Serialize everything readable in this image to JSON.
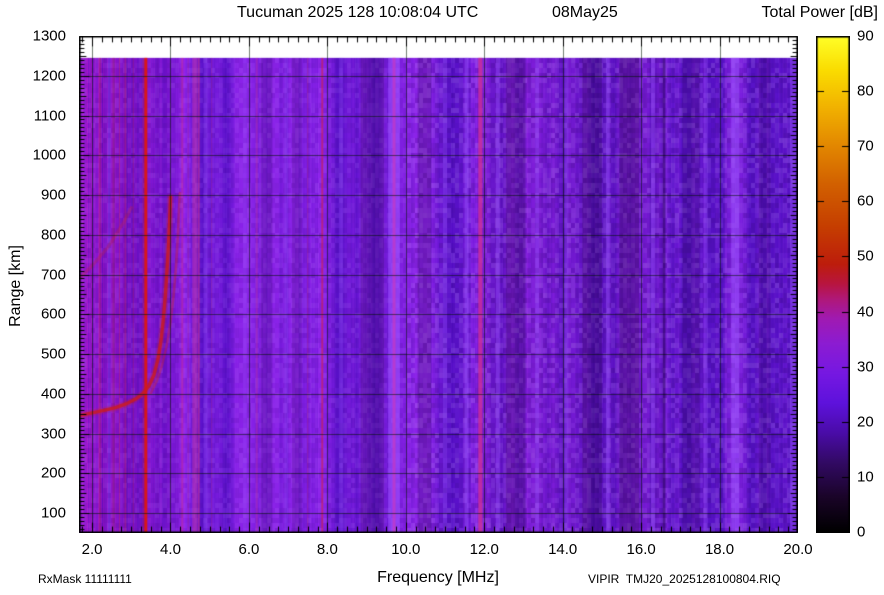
{
  "header": {
    "title_main": "Tucuman 2025 128 10:08:04 UTC",
    "title_date": "08May25",
    "colorbar_title": "Total Power [dB]"
  },
  "footer": {
    "rx_mask": "RxMask 11111111",
    "file_name": "VIPIR  TMJ20_2025128100804.RIQ",
    "x_axis_label": "Frequency [MHz]"
  },
  "y_axis_label": "Range [km]",
  "axes": {
    "x": {
      "label": "Frequency [MHz]",
      "min": 1.667,
      "max": 20.0,
      "tick_values": [
        2,
        4,
        6,
        8,
        10,
        12,
        14,
        16,
        18,
        20
      ],
      "tick_labels": [
        "2.0",
        "4.0",
        "6.0",
        "8.0",
        "10.0",
        "12.0",
        "14.0",
        "16.0",
        "18.0",
        "20.0"
      ],
      "minor_step": 0.25
    },
    "y": {
      "label": "Range [km]",
      "min": 50,
      "max": 1300,
      "tick_values": [
        100,
        200,
        300,
        400,
        500,
        600,
        700,
        800,
        900,
        1000,
        1100,
        1200,
        1300
      ],
      "tick_labels": [
        "100",
        "200",
        "300",
        "400",
        "500",
        "600",
        "700",
        "800",
        "900",
        "1000",
        "1100",
        "1200",
        "1300"
      ],
      "minor_step": 10
    },
    "colorbar": {
      "title": "Total Power [dB]",
      "min": 0,
      "max": 90,
      "tick_values": [
        0,
        10,
        20,
        30,
        40,
        50,
        60,
        70,
        80,
        90
      ],
      "tick_labels": [
        "0",
        "10",
        "20",
        "30",
        "40",
        "50",
        "60",
        "70",
        "80",
        "90"
      ],
      "gradient_stops": [
        {
          "t": 0.0,
          "color": "#000000"
        },
        {
          "t": 0.07,
          "color": "#1a0428"
        },
        {
          "t": 0.14,
          "color": "#320a64"
        },
        {
          "t": 0.2,
          "color": "#4a0ca8"
        },
        {
          "t": 0.26,
          "color": "#5e12dc"
        },
        {
          "t": 0.32,
          "color": "#7618e2"
        },
        {
          "t": 0.38,
          "color": "#8c1cd2"
        },
        {
          "t": 0.43,
          "color": "#a01ab2"
        },
        {
          "t": 0.47,
          "color": "#b01878"
        },
        {
          "t": 0.5,
          "color": "#b81540"
        },
        {
          "t": 0.54,
          "color": "#bd1d0c"
        },
        {
          "t": 0.62,
          "color": "#c64000"
        },
        {
          "t": 0.7,
          "color": "#d26000"
        },
        {
          "t": 0.78,
          "color": "#e38800"
        },
        {
          "t": 0.86,
          "color": "#f2b400"
        },
        {
          "t": 0.93,
          "color": "#fadc00"
        },
        {
          "t": 1.0,
          "color": "#ffff28"
        }
      ]
    }
  },
  "chart_data": {
    "type": "heatmap",
    "title": "Tucuman 2025 128 10:08:04 UTC  08May25",
    "xlabel": "Frequency [MHz]",
    "ylabel": "Range [km]",
    "zlabel": "Total Power [dB]",
    "xlim": [
      1.667,
      20.0
    ],
    "ylim": [
      50,
      1300
    ],
    "zlim": [
      0,
      90
    ],
    "data_top_km": 1245,
    "background_level_db": 20,
    "background_color": "#7a1cdc",
    "echo_trace_o_mode": [
      [
        1.67,
        345
      ],
      [
        2.0,
        352
      ],
      [
        2.3,
        358
      ],
      [
        2.6,
        365
      ],
      [
        2.9,
        376
      ],
      [
        3.1,
        386
      ],
      [
        3.3,
        401
      ],
      [
        3.45,
        420
      ],
      [
        3.58,
        448
      ],
      [
        3.68,
        487
      ],
      [
        3.76,
        535
      ],
      [
        3.82,
        590
      ],
      [
        3.87,
        648
      ],
      [
        3.91,
        710
      ],
      [
        3.95,
        775
      ],
      [
        3.98,
        840
      ],
      [
        4.0,
        895
      ]
    ],
    "echo_trace_x_mode": [
      [
        3.5,
        402
      ],
      [
        3.65,
        432
      ],
      [
        3.78,
        470
      ],
      [
        3.9,
        520
      ],
      [
        4.0,
        580
      ],
      [
        4.08,
        648
      ],
      [
        4.14,
        720
      ],
      [
        4.19,
        800
      ],
      [
        4.22,
        870
      ],
      [
        4.24,
        905
      ]
    ],
    "oblique_trace": [
      [
        1.67,
        690
      ],
      [
        2.0,
        722
      ],
      [
        2.4,
        768
      ],
      [
        2.8,
        830
      ],
      [
        3.0,
        868
      ]
    ],
    "rfi_lines": [
      {
        "f": 3.37,
        "w": 3,
        "color": "rgba(222,22,16,0.95)"
      },
      {
        "f": 3.3,
        "w": 1,
        "color": "rgba(220,30,30,0.40)"
      },
      {
        "f": 7.87,
        "w": 2,
        "color": "rgba(215,35,60,0.55)"
      },
      {
        "f": 4.62,
        "w": 5,
        "color": "rgba(210,60,150,0.40)"
      },
      {
        "f": 4.72,
        "w": 2,
        "color": "rgba(215,50,120,0.45)"
      },
      {
        "f": 11.9,
        "w": 4,
        "color": "rgba(205,45,150,0.80)"
      },
      {
        "f": 9.7,
        "w": 3,
        "color": "rgba(195,55,195,0.70)"
      },
      {
        "f": 6.2,
        "w": 2,
        "color": "rgba(210,60,140,0.30)"
      },
      {
        "f": 7.5,
        "w": 1,
        "color": "rgba(210,50,100,0.35)"
      },
      {
        "f": 2.2,
        "w": 2,
        "color": "rgba(200,40,60,0.30)"
      },
      {
        "f": 2.55,
        "w": 2,
        "color": "rgba(200,40,60,0.30)"
      },
      {
        "f": 2.7,
        "w": 1,
        "color": "rgba(200,40,60,0.35)"
      },
      {
        "f": 2.85,
        "w": 2,
        "color": "rgba(200,40,60,0.28)"
      },
      {
        "f": 3.05,
        "w": 1,
        "color": "rgba(200,40,60,0.30)"
      },
      {
        "f": 4.3,
        "w": 2,
        "color": "rgba(210,50,90,0.30)"
      },
      {
        "f": 4.45,
        "w": 1,
        "color": "rgba(210,50,90,0.30)"
      },
      {
        "f": 5.05,
        "w": 1,
        "color": "rgba(200,50,90,0.25)"
      }
    ],
    "bright_bands": [
      {
        "f0": 9.55,
        "f1": 9.85,
        "alpha": 0.55
      },
      {
        "f0": 5.85,
        "f1": 5.95,
        "alpha": 0.25
      },
      {
        "f0": 10.95,
        "f1": 11.05,
        "alpha": 0.3
      },
      {
        "f0": 11.5,
        "f1": 11.6,
        "alpha": 0.45
      },
      {
        "f0": 12.3,
        "f1": 12.4,
        "alpha": 0.4
      },
      {
        "f0": 13.3,
        "f1": 13.4,
        "alpha": 0.35
      },
      {
        "f0": 14.05,
        "f1": 14.15,
        "alpha": 0.3
      },
      {
        "f0": 15.1,
        "f1": 15.2,
        "alpha": 0.45
      },
      {
        "f0": 16.25,
        "f1": 16.35,
        "alpha": 0.4
      },
      {
        "f0": 17.6,
        "f1": 17.7,
        "alpha": 0.3
      },
      {
        "f0": 18.3,
        "f1": 18.5,
        "alpha": 0.5
      },
      {
        "f0": 19.8,
        "f1": 19.95,
        "alpha": 0.45
      },
      {
        "f0": 2.4,
        "f1": 2.47,
        "alpha": 0.28
      },
      {
        "f0": 4.85,
        "f1": 4.95,
        "alpha": 0.28
      },
      {
        "f0": 6.9,
        "f1": 7.0,
        "alpha": 0.25
      },
      {
        "f0": 8.3,
        "f1": 8.4,
        "alpha": 0.28
      }
    ],
    "dark_bands": [
      {
        "f0": 8.85,
        "f1": 9.45,
        "alpha": 0.22
      },
      {
        "f0": 10.3,
        "f1": 10.65,
        "alpha": 0.2
      },
      {
        "f0": 12.55,
        "f1": 13.05,
        "alpha": 0.22
      },
      {
        "f0": 14.5,
        "f1": 15.0,
        "alpha": 0.25
      },
      {
        "f0": 15.45,
        "f1": 15.95,
        "alpha": 0.28
      },
      {
        "f0": 16.55,
        "f1": 16.62,
        "alpha": 0.35
      },
      {
        "f0": 17.05,
        "f1": 17.5,
        "alpha": 0.18
      },
      {
        "f0": 19.0,
        "f1": 19.3,
        "alpha": 0.15
      },
      {
        "f0": 6.3,
        "f1": 6.6,
        "alpha": 0.15
      },
      {
        "f0": 7.1,
        "f1": 7.35,
        "alpha": 0.15
      }
    ]
  }
}
